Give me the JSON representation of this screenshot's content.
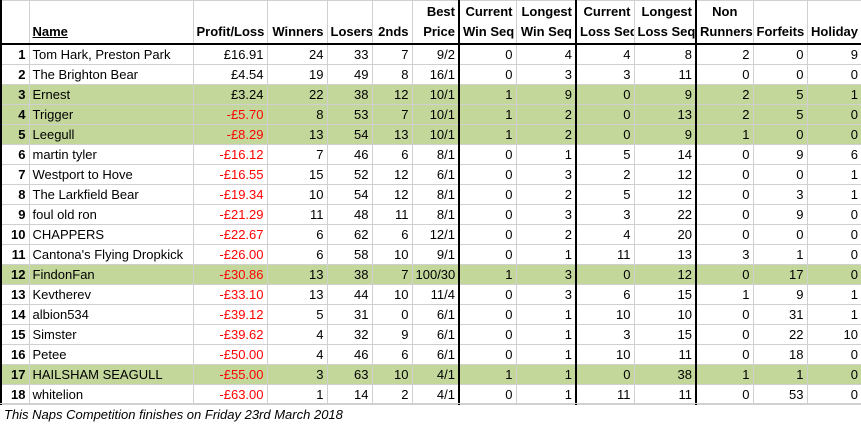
{
  "columns": [
    [
      "Name"
    ],
    [
      "Profit/Loss"
    ],
    [
      "Winners"
    ],
    [
      "Losers"
    ],
    [
      "2nds"
    ],
    [
      "Best",
      "Price"
    ],
    [
      "Current",
      "Win Seq"
    ],
    [
      "Longest",
      "Win Seq"
    ],
    [
      "Current",
      "Loss Seq"
    ],
    [
      "Longest",
      "Loss Seq"
    ],
    [
      "Non",
      "Runners"
    ],
    [
      "Forfeits"
    ],
    [
      "Holiday"
    ]
  ],
  "rows": [
    {
      "rank": 1,
      "highlight": false,
      "cells": [
        "Tom Hark, Preston Park",
        "£16.91",
        24,
        33,
        7,
        "9/2",
        0,
        4,
        4,
        8,
        2,
        0,
        9
      ]
    },
    {
      "rank": 2,
      "highlight": false,
      "cells": [
        "The Brighton Bear",
        "£4.54",
        19,
        49,
        8,
        "16/1",
        0,
        3,
        3,
        11,
        0,
        0,
        0
      ]
    },
    {
      "rank": 3,
      "highlight": true,
      "cells": [
        "Ernest",
        "£3.24",
        22,
        38,
        12,
        "10/1",
        1,
        9,
        0,
        9,
        2,
        5,
        1
      ]
    },
    {
      "rank": 4,
      "highlight": true,
      "cells": [
        "Trigger",
        "-£5.70",
        8,
        53,
        7,
        "10/1",
        1,
        2,
        0,
        13,
        2,
        5,
        0
      ]
    },
    {
      "rank": 5,
      "highlight": true,
      "cells": [
        "Leegull",
        "-£8.29",
        13,
        54,
        13,
        "10/1",
        1,
        2,
        0,
        9,
        1,
        0,
        0
      ]
    },
    {
      "rank": 6,
      "highlight": false,
      "cells": [
        "martin tyler",
        "-£16.12",
        7,
        46,
        6,
        "8/1",
        0,
        1,
        5,
        14,
        0,
        9,
        6
      ]
    },
    {
      "rank": 7,
      "highlight": false,
      "cells": [
        "Westport to Hove",
        "-£16.55",
        15,
        52,
        12,
        "6/1",
        0,
        3,
        2,
        12,
        0,
        0,
        1
      ]
    },
    {
      "rank": 8,
      "highlight": false,
      "cells": [
        "The Larkfield Bear",
        "-£19.34",
        10,
        54,
        12,
        "8/1",
        0,
        2,
        5,
        12,
        0,
        3,
        1
      ]
    },
    {
      "rank": 9,
      "highlight": false,
      "cells": [
        "foul old ron",
        "-£21.29",
        11,
        48,
        11,
        "8/1",
        0,
        3,
        3,
        22,
        0,
        9,
        0
      ]
    },
    {
      "rank": 10,
      "highlight": false,
      "cells": [
        "CHAPPERS",
        "-£22.67",
        6,
        62,
        6,
        "12/1",
        0,
        2,
        4,
        20,
        0,
        0,
        0
      ]
    },
    {
      "rank": 11,
      "highlight": false,
      "cells": [
        "Cantona's Flying Dropkick",
        "-£26.00",
        6,
        58,
        10,
        "9/1",
        0,
        1,
        11,
        13,
        3,
        1,
        0
      ]
    },
    {
      "rank": 12,
      "highlight": true,
      "cells": [
        "FindonFan",
        "-£30.86",
        13,
        38,
        7,
        "100/30",
        1,
        3,
        0,
        12,
        0,
        17,
        0
      ]
    },
    {
      "rank": 13,
      "highlight": false,
      "cells": [
        "Kevtherev",
        "-£33.10",
        13,
        44,
        10,
        "11/4",
        0,
        3,
        6,
        15,
        1,
        9,
        1
      ]
    },
    {
      "rank": 14,
      "highlight": false,
      "cells": [
        "albion534",
        "-£39.12",
        5,
        31,
        0,
        "6/1",
        0,
        1,
        10,
        10,
        0,
        31,
        1
      ]
    },
    {
      "rank": 15,
      "highlight": false,
      "cells": [
        "Simster",
        "-£39.62",
        4,
        32,
        9,
        "6/1",
        0,
        1,
        3,
        15,
        0,
        22,
        10
      ]
    },
    {
      "rank": 16,
      "highlight": false,
      "cells": [
        "Petee",
        "-£50.00",
        4,
        46,
        6,
        "6/1",
        0,
        1,
        10,
        11,
        0,
        18,
        0
      ]
    },
    {
      "rank": 17,
      "highlight": true,
      "cells": [
        "HAILSHAM SEAGULL",
        "-£55.00",
        3,
        63,
        10,
        "4/1",
        1,
        1,
        0,
        38,
        1,
        1,
        0
      ]
    },
    {
      "rank": 18,
      "highlight": false,
      "cells": [
        "whitelion",
        "-£63.00",
        1,
        14,
        2,
        "4/1",
        0,
        1,
        11,
        11,
        0,
        53,
        0
      ]
    }
  ],
  "footer": "This Naps Competition finishes on Friday 23rd March 2018"
}
